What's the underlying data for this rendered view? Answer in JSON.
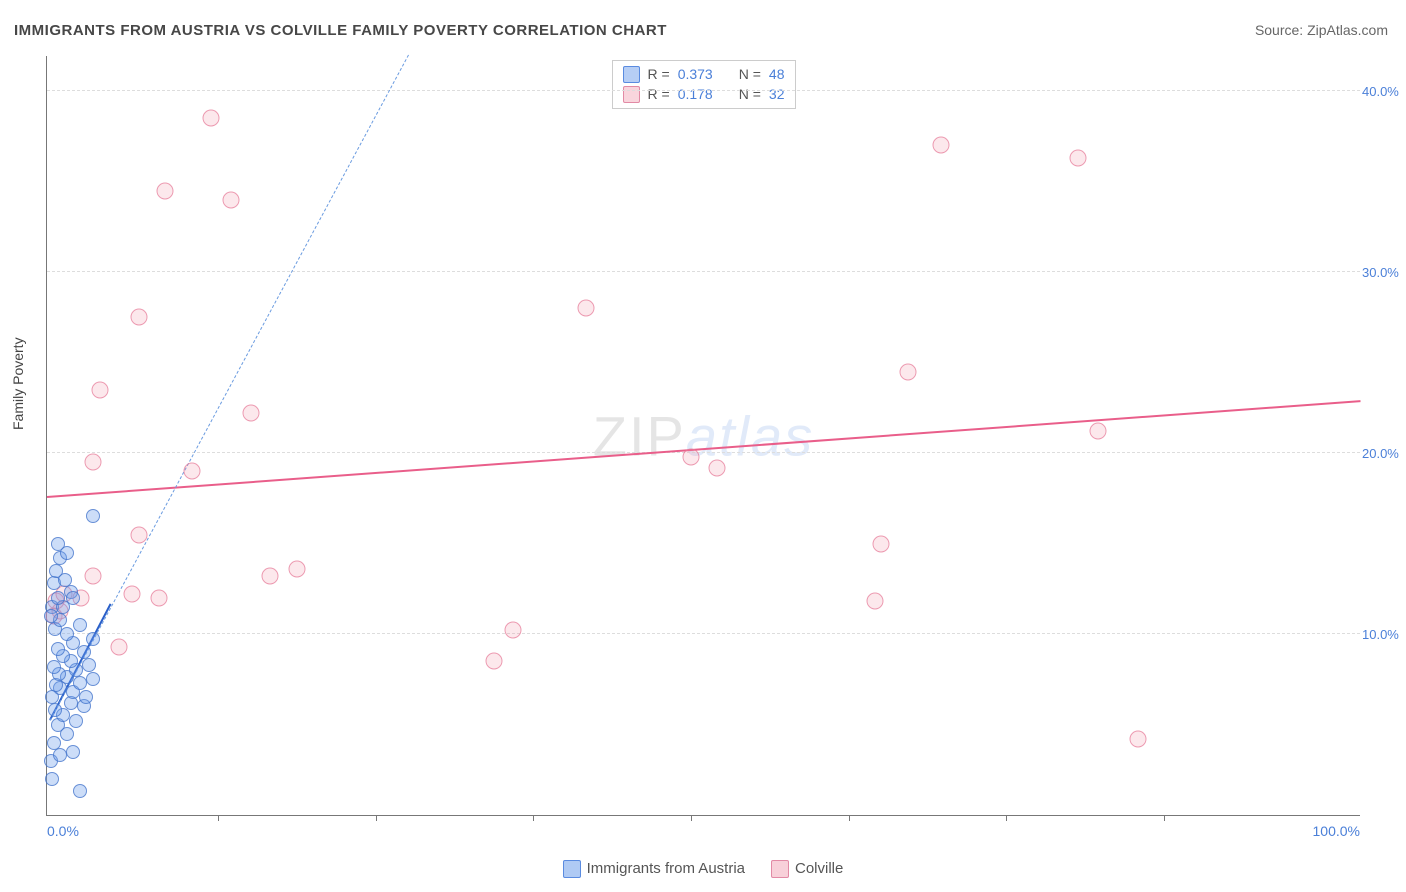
{
  "title": "IMMIGRANTS FROM AUSTRIA VS COLVILLE FAMILY POVERTY CORRELATION CHART",
  "source": "Source: ZipAtlas.com",
  "watermark": {
    "part1": "ZIP",
    "part2": "atlas"
  },
  "chart": {
    "type": "scatter",
    "xlim": [
      0,
      100
    ],
    "ylim": [
      0,
      42
    ],
    "x_label_min": "0.0%",
    "x_label_max": "100.0%",
    "y_label_title": "Family Poverty",
    "y_ticks": [
      {
        "value": 10,
        "label": "10.0%"
      },
      {
        "value": 20,
        "label": "20.0%"
      },
      {
        "value": 30,
        "label": "30.0%"
      },
      {
        "value": 40,
        "label": "40.0%"
      }
    ],
    "x_tick_positions": [
      13,
      25,
      37,
      49,
      61,
      73,
      85
    ],
    "background_color": "#ffffff",
    "grid_color": "#dddddd",
    "series": [
      {
        "name": "Immigrants from Austria",
        "color_fill": "rgba(109,158,235,0.35)",
        "color_stroke": "rgba(60,110,200,0.7)",
        "marker_size": 14,
        "R": "0.373",
        "N": "48",
        "trend_solid": {
          "x1": 0.2,
          "y1": 5.2,
          "x2": 4.8,
          "y2": 11.6,
          "color": "#2a5fc9",
          "width": 2.5
        },
        "trend_dashed": {
          "x1": 0.2,
          "y1": 5.2,
          "x2": 27.5,
          "y2": 42.0,
          "color": "#6a9be0",
          "width": 1.5
        },
        "points": [
          {
            "x": 0.3,
            "y": 3.0
          },
          {
            "x": 1.0,
            "y": 3.3
          },
          {
            "x": 2.0,
            "y": 3.5
          },
          {
            "x": 0.5,
            "y": 4.0
          },
          {
            "x": 1.5,
            "y": 4.5
          },
          {
            "x": 0.8,
            "y": 5.0
          },
          {
            "x": 2.2,
            "y": 5.2
          },
          {
            "x": 1.2,
            "y": 5.5
          },
          {
            "x": 0.6,
            "y": 5.8
          },
          {
            "x": 2.8,
            "y": 6.0
          },
          {
            "x": 1.8,
            "y": 6.2
          },
          {
            "x": 0.4,
            "y": 6.5
          },
          {
            "x": 3.0,
            "y": 6.5
          },
          {
            "x": 2.0,
            "y": 6.8
          },
          {
            "x": 1.0,
            "y": 7.0
          },
          {
            "x": 0.7,
            "y": 7.2
          },
          {
            "x": 2.5,
            "y": 7.3
          },
          {
            "x": 3.5,
            "y": 7.5
          },
          {
            "x": 1.5,
            "y": 7.6
          },
          {
            "x": 0.9,
            "y": 7.8
          },
          {
            "x": 2.2,
            "y": 8.0
          },
          {
            "x": 0.5,
            "y": 8.2
          },
          {
            "x": 3.2,
            "y": 8.3
          },
          {
            "x": 1.8,
            "y": 8.5
          },
          {
            "x": 1.2,
            "y": 8.8
          },
          {
            "x": 2.8,
            "y": 9.0
          },
          {
            "x": 0.8,
            "y": 9.2
          },
          {
            "x": 2.0,
            "y": 9.5
          },
          {
            "x": 3.5,
            "y": 9.7
          },
          {
            "x": 1.5,
            "y": 10.0
          },
          {
            "x": 0.6,
            "y": 10.3
          },
          {
            "x": 2.5,
            "y": 10.5
          },
          {
            "x": 1.0,
            "y": 10.8
          },
          {
            "x": 0.4,
            "y": 11.5
          },
          {
            "x": 1.2,
            "y": 11.5
          },
          {
            "x": 0.8,
            "y": 12.0
          },
          {
            "x": 1.8,
            "y": 12.3
          },
          {
            "x": 0.5,
            "y": 12.8
          },
          {
            "x": 1.4,
            "y": 13.0
          },
          {
            "x": 0.7,
            "y": 13.5
          },
          {
            "x": 1.0,
            "y": 14.2
          },
          {
            "x": 0.8,
            "y": 15.0
          },
          {
            "x": 1.5,
            "y": 14.5
          },
          {
            "x": 2.0,
            "y": 12.0
          },
          {
            "x": 3.5,
            "y": 16.5
          },
          {
            "x": 0.4,
            "y": 2.0
          },
          {
            "x": 2.5,
            "y": 1.3
          },
          {
            "x": 0.3,
            "y": 11.0
          }
        ]
      },
      {
        "name": "Colville",
        "color_fill": "rgba(240,150,170,0.22)",
        "color_stroke": "rgba(230,120,150,0.7)",
        "marker_size": 17,
        "R": "0.178",
        "N": "32",
        "trend_solid": {
          "x1": 0,
          "y1": 17.5,
          "x2": 100,
          "y2": 22.8,
          "color": "#e95e8a",
          "width": 2
        },
        "points": [
          {
            "x": 0.5,
            "y": 11.0
          },
          {
            "x": 1.0,
            "y": 11.3
          },
          {
            "x": 0.7,
            "y": 11.8
          },
          {
            "x": 1.3,
            "y": 12.2
          },
          {
            "x": 2.6,
            "y": 12.0
          },
          {
            "x": 5.5,
            "y": 9.3
          },
          {
            "x": 3.5,
            "y": 13.2
          },
          {
            "x": 6.5,
            "y": 12.2
          },
          {
            "x": 8.5,
            "y": 12.0
          },
          {
            "x": 7.0,
            "y": 15.5
          },
          {
            "x": 11.0,
            "y": 19.0
          },
          {
            "x": 3.5,
            "y": 19.5
          },
          {
            "x": 4.0,
            "y": 23.5
          },
          {
            "x": 7.0,
            "y": 27.5
          },
          {
            "x": 9.0,
            "y": 34.5
          },
          {
            "x": 12.5,
            "y": 38.5
          },
          {
            "x": 15.5,
            "y": 22.2
          },
          {
            "x": 19.0,
            "y": 13.6
          },
          {
            "x": 17.0,
            "y": 13.2
          },
          {
            "x": 34.0,
            "y": 8.5
          },
          {
            "x": 35.5,
            "y": 10.2
          },
          {
            "x": 41.0,
            "y": 28.0
          },
          {
            "x": 49.0,
            "y": 19.8
          },
          {
            "x": 51.0,
            "y": 19.2
          },
          {
            "x": 63.5,
            "y": 15.0
          },
          {
            "x": 63.0,
            "y": 11.8
          },
          {
            "x": 65.5,
            "y": 24.5
          },
          {
            "x": 68.0,
            "y": 37.0
          },
          {
            "x": 78.5,
            "y": 36.3
          },
          {
            "x": 80.0,
            "y": 21.2
          },
          {
            "x": 83.0,
            "y": 4.2
          },
          {
            "x": 14.0,
            "y": 34.0
          }
        ]
      }
    ],
    "legend_bottom": [
      {
        "name": "Immigrants from Austria",
        "class": "blue"
      },
      {
        "name": "Colville",
        "class": "pink"
      }
    ],
    "stat_box": {
      "rows": [
        {
          "class": "blue",
          "r_label": "R =",
          "r_value": "0.373",
          "n_label": "N =",
          "n_value": "48"
        },
        {
          "class": "pink",
          "r_label": "R =",
          "r_value": "0.178",
          "n_label": "N =",
          "n_value": "32"
        }
      ]
    }
  }
}
